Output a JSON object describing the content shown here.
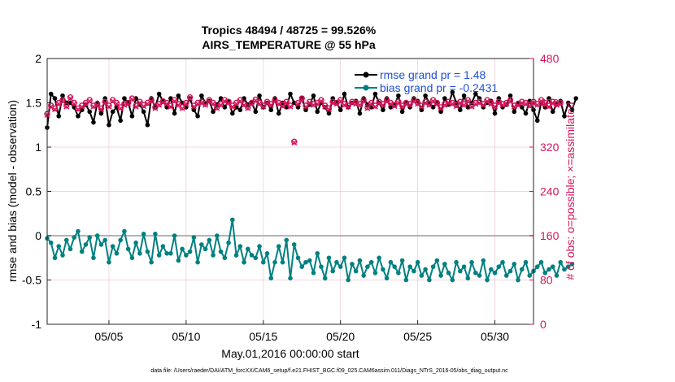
{
  "chart_data": {
    "type": "line",
    "title": "Tropics 48494 / 48725 = 99.526%",
    "subtitle": "AIRS_TEMPERATURE @ 55 hPa",
    "xlabel": "May.01,2016 00:00:00 start",
    "ylabel": "rmse and bias (model - observation)",
    "y2label": "# of obs: o=possible; ×=assimilated",
    "xlim": [
      1,
      32.5
    ],
    "ylim": [
      -1,
      2
    ],
    "y2lim": [
      0,
      480
    ],
    "x_ticks": [
      5,
      10,
      15,
      20,
      25,
      30
    ],
    "x_tick_labels": [
      "05/05",
      "05/10",
      "05/15",
      "05/20",
      "05/25",
      "05/30"
    ],
    "y_ticks": [
      -1,
      -0.5,
      0,
      0.5,
      1,
      1.5,
      2
    ],
    "y_tick_labels": [
      "-1",
      "-0.5",
      "0",
      "0.5",
      "1",
      "1.5",
      "2"
    ],
    "y2_ticks": [
      0,
      80,
      160,
      240,
      320,
      400,
      480
    ],
    "y2_tick_labels": [
      "0",
      "80",
      "160",
      "240",
      "320",
      "400",
      "480"
    ],
    "zero_line": 0,
    "legend": {
      "placement": "top-right",
      "entries": [
        "rmse grand pr = 1.48",
        "bias grand pr = -0.2431"
      ]
    },
    "series": [
      {
        "name": "rmse",
        "axis": "left",
        "color": "#000000",
        "x_start": 1.0,
        "x_step": 0.25,
        "values": [
          1.22,
          1.6,
          1.55,
          1.35,
          1.58,
          1.5,
          1.5,
          1.45,
          1.35,
          1.42,
          1.48,
          1.4,
          1.28,
          1.5,
          1.38,
          1.55,
          1.25,
          1.4,
          1.45,
          1.3,
          1.55,
          1.5,
          1.35,
          1.55,
          1.48,
          1.4,
          1.25,
          1.55,
          1.45,
          1.6,
          1.52,
          1.45,
          1.55,
          1.38,
          1.58,
          1.5,
          1.45,
          1.55,
          1.42,
          1.35,
          1.58,
          1.5,
          1.52,
          1.4,
          1.48,
          1.55,
          1.45,
          1.52,
          1.38,
          1.45,
          1.42,
          1.55,
          1.48,
          1.5,
          1.4,
          1.58,
          1.45,
          1.5,
          1.42,
          1.55,
          1.38,
          1.5,
          1.45,
          1.6,
          1.5,
          1.45,
          1.55,
          1.42,
          1.48,
          1.58,
          1.4,
          1.5,
          1.45,
          1.38,
          1.55,
          1.5,
          1.42,
          1.6,
          1.45,
          1.5,
          1.52,
          1.38,
          1.55,
          1.48,
          1.45,
          1.6,
          1.5,
          1.42,
          1.55,
          1.45,
          1.48,
          1.58,
          1.4,
          1.5,
          1.45,
          1.55,
          1.52,
          1.42,
          1.58,
          1.5,
          1.45,
          1.5,
          1.4,
          1.55,
          1.48,
          1.62,
          1.5,
          1.42,
          1.58,
          1.45,
          1.5,
          1.6,
          1.55,
          1.45,
          1.5,
          1.52,
          1.38,
          1.55,
          1.45,
          1.48,
          1.58,
          1.4,
          1.5,
          1.45,
          1.38,
          1.52,
          1.42,
          1.3,
          1.5,
          1.45,
          1.55,
          1.4,
          1.48,
          1.52,
          1.35,
          1.5,
          1.42,
          1.55
        ]
      },
      {
        "name": "bias",
        "axis": "left",
        "color": "#008080",
        "x_start": 1.0,
        "x_step": 0.25,
        "values": [
          -0.03,
          -0.08,
          -0.25,
          -0.12,
          -0.22,
          -0.05,
          -0.15,
          -0.02,
          0.05,
          -0.18,
          -0.1,
          -0.02,
          -0.25,
          0.0,
          -0.1,
          -0.05,
          -0.3,
          -0.12,
          -0.2,
          -0.05,
          0.05,
          -0.15,
          -0.25,
          -0.08,
          -0.2,
          0.02,
          -0.18,
          -0.3,
          0.02,
          -0.22,
          -0.12,
          -0.2,
          -0.2,
          0.0,
          -0.28,
          -0.15,
          -0.22,
          -0.18,
          -0.02,
          -0.3,
          -0.1,
          -0.15,
          -0.05,
          -0.22,
          0.0,
          -0.18,
          -0.25,
          -0.08,
          0.18,
          -0.22,
          -0.12,
          -0.3,
          -0.15,
          -0.22,
          -0.25,
          -0.12,
          -0.3,
          -0.2,
          -0.48,
          -0.3,
          -0.12,
          -0.3,
          -0.05,
          -0.48,
          -0.1,
          -0.25,
          -0.35,
          -0.3,
          -0.28,
          -0.42,
          -0.2,
          -0.35,
          -0.48,
          -0.25,
          -0.4,
          -0.3,
          -0.35,
          -0.25,
          -0.5,
          -0.32,
          -0.4,
          -0.28,
          -0.45,
          -0.35,
          -0.3,
          -0.42,
          -0.25,
          -0.38,
          -0.48,
          -0.3,
          -0.35,
          -0.42,
          -0.28,
          -0.5,
          -0.35,
          -0.4,
          -0.3,
          -0.45,
          -0.38,
          -0.5,
          -0.35,
          -0.28,
          -0.45,
          -0.32,
          -0.42,
          -0.5,
          -0.3,
          -0.4,
          -0.35,
          -0.48,
          -0.3,
          -0.42,
          -0.45,
          -0.28,
          -0.5,
          -0.38,
          -0.42,
          -0.35,
          -0.3,
          -0.45,
          -0.4,
          -0.32,
          -0.5,
          -0.38,
          -0.3,
          -0.45,
          -0.4,
          -0.35,
          -0.3,
          -0.42,
          -0.38,
          -0.35,
          -0.45,
          -0.3,
          -0.38,
          -0.35,
          -0.32
        ]
      },
      {
        "name": "obs possible",
        "axis": "right",
        "color": "#d4145a",
        "x_start": 1.0,
        "x_step": 0.25,
        "values": [
          380,
          395,
          390,
          400,
          405,
          395,
          410,
          400,
          390,
          395,
          400,
          405,
          395,
          398,
          390,
          402,
          395,
          405,
          400,
          392,
          398,
          400,
          408,
          395,
          402,
          396,
          400,
          405,
          392,
          398,
          403,
          400,
          395,
          405,
          398,
          392,
          400,
          410,
          395,
          400,
          402,
          398,
          405,
          400,
          392,
          398,
          405,
          402,
          395,
          400,
          405,
          398,
          392,
          400,
          406,
          400,
          395,
          402,
          398,
          405,
          400,
          396,
          402,
          395,
          330,
          400,
          408,
          395,
          402,
          398,
          400,
          405,
          395,
          390,
          402,
          400,
          405,
          398,
          395,
          402,
          400,
          398,
          405,
          392,
          400,
          395,
          402,
          398,
          405,
          400,
          396,
          402,
          395,
          400,
          398,
          405,
          400,
          395,
          402,
          398,
          405,
          400,
          392,
          398,
          402,
          400,
          396,
          402,
          398,
          405,
          395,
          400,
          402,
          398,
          405,
          400,
          395,
          402,
          398,
          400,
          405,
          395,
          398,
          402,
          400,
          396,
          402,
          398,
          405,
          400,
          395,
          402,
          398,
          400
        ]
      },
      {
        "name": "obs assimilated",
        "axis": "right",
        "color": "#d4145a",
        "x_start": 1.0,
        "x_step": 0.25,
        "values": [
          378,
          393,
          388,
          398,
          403,
          393,
          408,
          398,
          388,
          393,
          398,
          403,
          393,
          396,
          388,
          400,
          393,
          403,
          398,
          390,
          396,
          398,
          406,
          393,
          400,
          394,
          398,
          403,
          390,
          396,
          401,
          398,
          393,
          403,
          396,
          390,
          398,
          408,
          393,
          398,
          400,
          396,
          403,
          398,
          390,
          396,
          403,
          400,
          393,
          398,
          403,
          396,
          390,
          398,
          404,
          398,
          393,
          400,
          396,
          403,
          398,
          394,
          400,
          393,
          328,
          398,
          406,
          393,
          400,
          396,
          398,
          403,
          393,
          388,
          400,
          398,
          403,
          396,
          393,
          400,
          398,
          396,
          403,
          390,
          398,
          393,
          400,
          396,
          403,
          398,
          394,
          400,
          393,
          398,
          396,
          403,
          398,
          393,
          400,
          396,
          403,
          398,
          390,
          396,
          400,
          398,
          394,
          400,
          396,
          403,
          393,
          398,
          400,
          396,
          403,
          398,
          393,
          400,
          396,
          398,
          403,
          393,
          396,
          400,
          398,
          394,
          400,
          396,
          403,
          398,
          393,
          400,
          396,
          398
        ]
      }
    ]
  },
  "footnote": "data file: /Users/raeder/DAI/ATM_forcXX/CAM6_setup/f.e21.FHIST_BGC.f09_025.CAM6assim.011/Diags_NTrS_2016-05/obs_diag_output.nc"
}
